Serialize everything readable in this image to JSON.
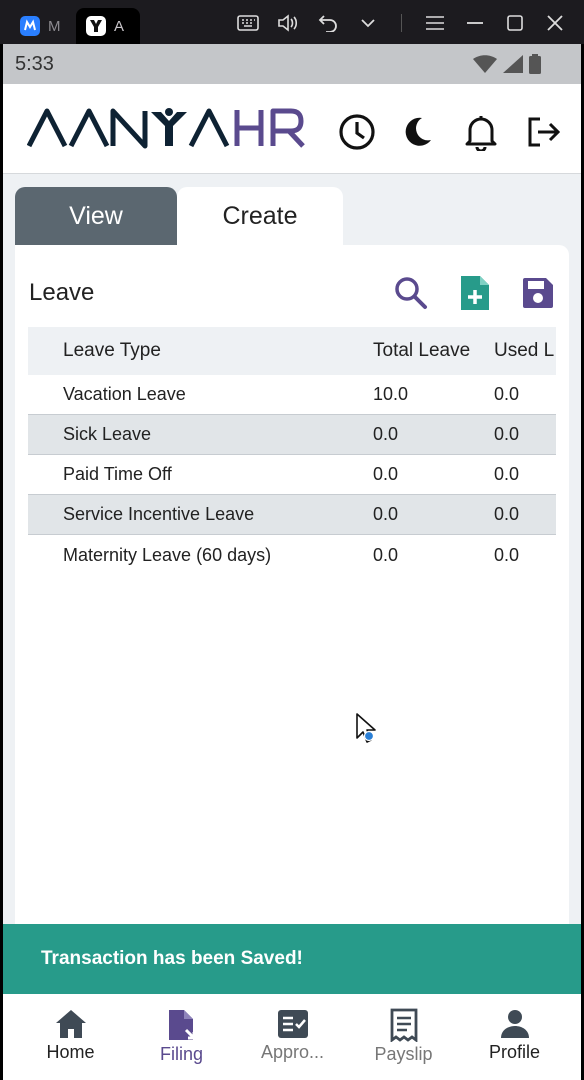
{
  "window": {
    "tabs": [
      {
        "label": "M"
      },
      {
        "label": "A"
      }
    ]
  },
  "status_bar": {
    "time": "5:33"
  },
  "header": {
    "logo_text_left": "AANYA",
    "logo_text_right": "HR",
    "colors": {
      "logo_dark": "#0e2233",
      "logo_accent": "#5a4a8e"
    },
    "icons": [
      "history-icon",
      "dark-mode-icon",
      "notification-bell-icon",
      "logout-icon"
    ]
  },
  "tabs": {
    "view": "View",
    "create": "Create"
  },
  "leave": {
    "title": "Leave",
    "columns": [
      "Leave Type",
      "Total Leave",
      "Used L"
    ],
    "rows": [
      {
        "type": "Vacation Leave",
        "total": "10.0",
        "used": "0.0"
      },
      {
        "type": "Sick Leave",
        "total": "0.0",
        "used": "0.0"
      },
      {
        "type": "Paid Time Off",
        "total": "0.0",
        "used": "0.0"
      },
      {
        "type": "Service Incentive Leave",
        "total": "0.0",
        "used": "0.0"
      },
      {
        "type": "Maternity Leave (60 days)",
        "total": "0.0",
        "used": "0.0"
      }
    ]
  },
  "snackbar": {
    "message": "Transaction has been Saved!",
    "color": "#279b8a"
  },
  "bottom_nav": {
    "items": [
      {
        "label": "Home"
      },
      {
        "label": "Filing"
      },
      {
        "label": "Appro..."
      },
      {
        "label": "Payslip"
      },
      {
        "label": "Profile"
      }
    ],
    "active_color": "#5a4a8e"
  }
}
